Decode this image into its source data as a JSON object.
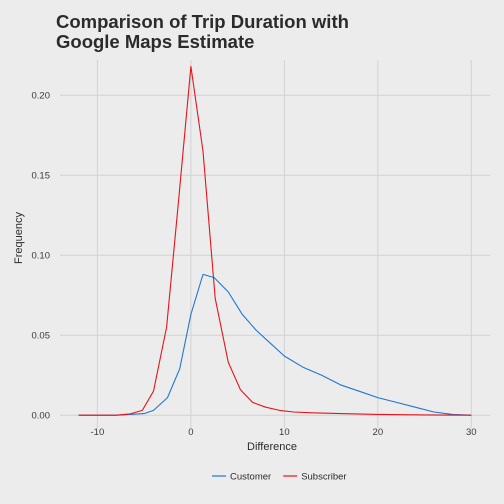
{
  "chart_data": {
    "type": "line",
    "title_lines": [
      "Comparison of Trip Duration with",
      "Google Maps Estimate"
    ],
    "xlabel": "Difference",
    "ylabel": "Frequency",
    "xlim": [
      -14,
      32
    ],
    "ylim": [
      -0.008,
      0.222
    ],
    "x_ticks": [
      -10,
      0,
      10,
      20,
      30
    ],
    "x_tick_labels": [
      "-10",
      "0",
      "10",
      "20",
      "30"
    ],
    "y_ticks": [
      0.0,
      0.05,
      0.1,
      0.15,
      0.2
    ],
    "y_tick_labels": [
      "0.00",
      "0.05",
      "0.10",
      "0.15",
      "0.20"
    ],
    "grid": true,
    "legend_position": "bottom",
    "series": [
      {
        "name": "Customer",
        "color": "#1f77d4",
        "x": [
          -12,
          -10,
          -8,
          -6.5,
          -5,
          -4,
          -2.5,
          -1.2,
          0,
          1.3,
          2.5,
          4,
          5.5,
          7,
          8.5,
          10,
          12,
          14,
          16,
          18,
          20,
          22,
          24,
          26,
          28,
          30
        ],
        "y": [
          0.0,
          0.0,
          0.0,
          0.0005,
          0.001,
          0.003,
          0.011,
          0.029,
          0.063,
          0.088,
          0.086,
          0.077,
          0.063,
          0.053,
          0.045,
          0.037,
          0.03,
          0.025,
          0.019,
          0.015,
          0.011,
          0.008,
          0.005,
          0.002,
          0.0005,
          0.0
        ]
      },
      {
        "name": "Subscriber",
        "color": "#e5141b",
        "x": [
          -12,
          -10,
          -8,
          -6.5,
          -5.2,
          -4,
          -2.6,
          -1.3,
          0,
          1.3,
          2.6,
          4,
          5.3,
          6.6,
          8,
          9.5,
          11,
          13,
          16,
          20,
          25,
          30
        ],
        "y": [
          0.0,
          0.0,
          0.0,
          0.0008,
          0.003,
          0.015,
          0.055,
          0.135,
          0.218,
          0.165,
          0.073,
          0.033,
          0.016,
          0.008,
          0.005,
          0.003,
          0.002,
          0.0015,
          0.001,
          0.0005,
          0.0002,
          0.0
        ]
      }
    ]
  }
}
